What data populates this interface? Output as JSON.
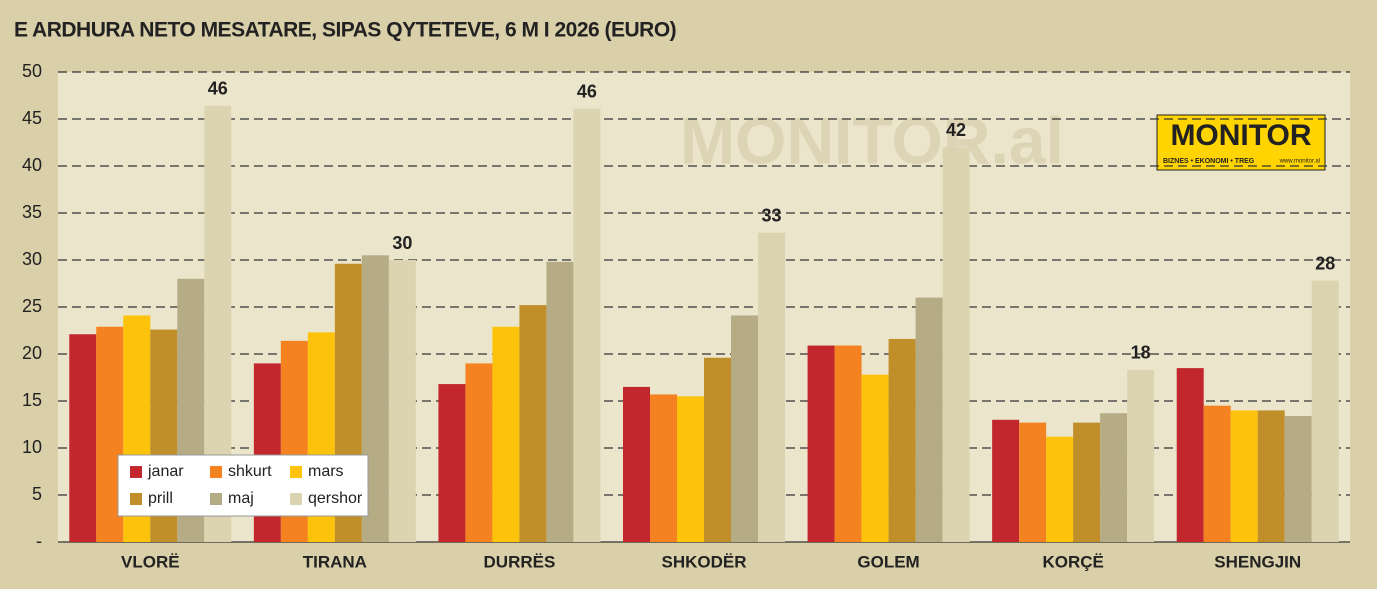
{
  "chart_data": {
    "type": "bar",
    "title": "E ARDHURA NETO MESATARE, SIPAS QYTETEVE, 6 M I 2026 (EURO)",
    "watermark": "MONITOR.al",
    "logo": {
      "name": "MONITOR",
      "tagline": "BIZNES • EKONOMI • TREG",
      "url": "www.monitor.al"
    },
    "categories": [
      "VLORË",
      "TIRANA",
      "DURRËS",
      "SHKODËR",
      "GOLEM",
      "KORÇË",
      "SHENGJIN"
    ],
    "series": [
      {
        "name": "janar",
        "color": "#c1272d",
        "values": [
          22.1,
          19.0,
          16.8,
          16.5,
          20.9,
          13.0,
          18.5
        ]
      },
      {
        "name": "shkurt",
        "color": "#f58220",
        "values": [
          22.9,
          21.4,
          19.0,
          15.7,
          20.9,
          12.7,
          14.5
        ]
      },
      {
        "name": "mars",
        "color": "#fdc30a",
        "values": [
          24.1,
          22.3,
          22.9,
          15.5,
          17.8,
          11.2,
          14.0
        ]
      },
      {
        "name": "prill",
        "color": "#c08f2a",
        "values": [
          22.6,
          29.6,
          25.2,
          19.6,
          21.6,
          12.7,
          14.0
        ]
      },
      {
        "name": "maj",
        "color": "#b5ab85",
        "values": [
          28.0,
          30.5,
          29.8,
          24.1,
          26.0,
          13.7,
          13.4
        ]
      },
      {
        "name": "qershor",
        "color": "#dcd4b0",
        "values": [
          46.4,
          30.0,
          46.1,
          32.9,
          42.0,
          18.3,
          27.8
        ],
        "value_labels": [
          "46",
          "30",
          "46",
          "33",
          "42",
          "18",
          "28"
        ]
      }
    ],
    "ylim": [
      0,
      50
    ],
    "yticks": [
      {
        "value": 0,
        "label": "-"
      },
      5,
      10,
      15,
      20,
      25,
      30,
      35,
      40,
      45,
      50
    ],
    "grid": true,
    "legend": "lower left"
  }
}
